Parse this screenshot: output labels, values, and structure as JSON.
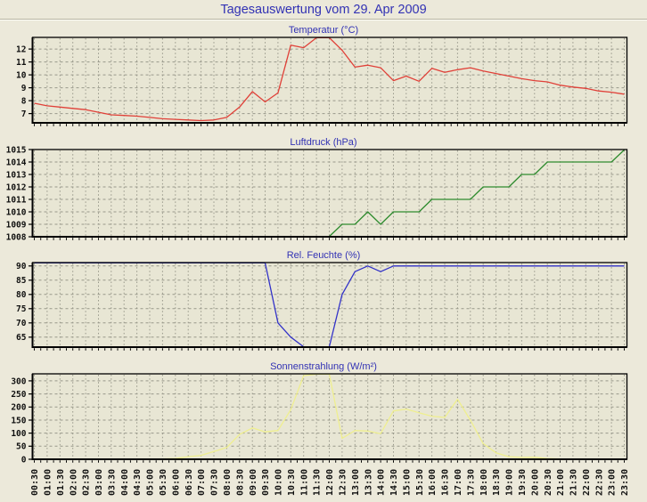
{
  "main": {
    "title": "Tagesauswertung vom 29. Apr 2009"
  },
  "colors": {
    "page_bg": "#ece9da",
    "plot_bg": "#e8e6d4",
    "grid": "#98988a",
    "axis": "#000000",
    "heading_blue": "#3232b4",
    "tick_text": "#101010"
  },
  "x_categories": [
    "00:30",
    "01:00",
    "01:30",
    "02:00",
    "02:30",
    "03:00",
    "03:30",
    "04:00",
    "04:30",
    "05:00",
    "05:30",
    "06:00",
    "06:30",
    "07:00",
    "07:30",
    "08:00",
    "08:30",
    "09:00",
    "09:30",
    "10:00",
    "10:30",
    "11:00",
    "11:30",
    "12:00",
    "12:30",
    "13:00",
    "13:30",
    "14:00",
    "14:30",
    "15:00",
    "15:30",
    "16:00",
    "16:30",
    "17:00",
    "17:30",
    "18:00",
    "18:30",
    "19:00",
    "19:30",
    "20:00",
    "20:30",
    "21:00",
    "21:30",
    "22:00",
    "22:30",
    "23:00",
    "23:30"
  ],
  "chart_data": [
    {
      "type": "line",
      "title": "Temperatur (°C)",
      "color": "#e04038",
      "ylim": [
        6.28,
        12.9
      ],
      "yticks": [
        7,
        8,
        9,
        10,
        11,
        12
      ],
      "grid": "on",
      "note": "values above 12.9 are clipped at the plot top border",
      "values": [
        7.8,
        7.6,
        7.5,
        7.4,
        7.3,
        7.1,
        6.9,
        6.85,
        6.8,
        6.7,
        6.6,
        6.55,
        6.5,
        6.45,
        6.5,
        6.7,
        7.5,
        8.7,
        7.9,
        8.6,
        12.3,
        12.1,
        13.1,
        13.3,
        11.9,
        10.6,
        10.75,
        10.55,
        9.55,
        9.9,
        9.5,
        10.5,
        10.2,
        10.4,
        10.55,
        10.3,
        10.1,
        9.9,
        9.7,
        9.55,
        9.45,
        9.2,
        9.05,
        8.95,
        8.75,
        8.65,
        8.5
      ]
    },
    {
      "type": "line",
      "title": "Luftdruck (hPa)",
      "color": "#2e8b2e",
      "ylim": [
        1008,
        1015
      ],
      "yticks": [
        1008,
        1009,
        1010,
        1011,
        1012,
        1013,
        1014,
        1015
      ],
      "grid": "on",
      "note": "morning values sit at 1008 on the bottom axis (hidden under border)",
      "values": [
        1008,
        1008,
        1008,
        1008,
        1008,
        1008,
        1008,
        1008,
        1008,
        1008,
        1008,
        1008,
        1008,
        1008,
        1008,
        1008,
        1008,
        1008,
        1008,
        1008,
        1008,
        1008,
        1008,
        1008,
        1009,
        1009,
        1010,
        1009,
        1010,
        1010,
        1010,
        1011,
        1011,
        1011,
        1011,
        1012,
        1012,
        1012,
        1013,
        1013,
        1014,
        1014,
        1014,
        1014,
        1014,
        1014,
        1015
      ]
    },
    {
      "type": "line",
      "title": "Rel. Feuchte (%)",
      "color": "#3232c8",
      "ylim": [
        61.5,
        91.2
      ],
      "yticks": [
        65,
        70,
        75,
        80,
        85,
        90
      ],
      "grid": "on",
      "note": "values above 91.2 / below 61.5 are clipped at the borders",
      "values": [
        93,
        93,
        93,
        93,
        93,
        93,
        93,
        93,
        93,
        93,
        93,
        93,
        93,
        93,
        93,
        93,
        93,
        93,
        93,
        70,
        65,
        60,
        57,
        59,
        80,
        88,
        90,
        88,
        90,
        90,
        90,
        90,
        90,
        90,
        90,
        90,
        90,
        90,
        90,
        90,
        90,
        90,
        90,
        90,
        90,
        90,
        90
      ]
    },
    {
      "type": "line",
      "title": "Sonnenstrahlung (W/m²)",
      "color": "#efef8f",
      "ylim": [
        0,
        327
      ],
      "yticks": [
        0,
        50,
        100,
        150,
        200,
        250,
        300
      ],
      "grid": "on",
      "note": "midday spike exceeds 327 and is clipped at the plot top border",
      "values": [
        0,
        0,
        0,
        0,
        0,
        0,
        0,
        0,
        0,
        0,
        0,
        3,
        10,
        15,
        30,
        45,
        95,
        120,
        105,
        110,
        190,
        320,
        340,
        335,
        80,
        110,
        108,
        98,
        185,
        192,
        178,
        165,
        160,
        230,
        150,
        60,
        25,
        10,
        7,
        8,
        3,
        0,
        0,
        0,
        0,
        0,
        0
      ]
    }
  ]
}
